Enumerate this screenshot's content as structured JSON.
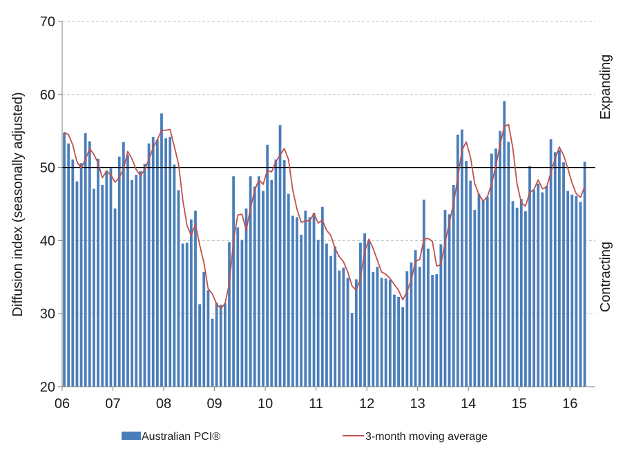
{
  "chart_data": {
    "type": "bar",
    "title": "",
    "xlabel": "",
    "ylabel": "Diffusion index (seasonally adjusted)",
    "ylim": [
      20,
      70
    ],
    "yticks": [
      20,
      30,
      40,
      50,
      60,
      70
    ],
    "xlim": [
      2006,
      2016.5
    ],
    "xticks": [
      {
        "value": 2006,
        "label": "06"
      },
      {
        "value": 2007,
        "label": "07"
      },
      {
        "value": 2008,
        "label": "08"
      },
      {
        "value": 2009,
        "label": "09"
      },
      {
        "value": 2010,
        "label": "10"
      },
      {
        "value": 2011,
        "label": "11"
      },
      {
        "value": 2012,
        "label": "12"
      },
      {
        "value": 2013,
        "label": "13"
      },
      {
        "value": 2014,
        "label": "14"
      },
      {
        "value": 2015,
        "label": "15"
      },
      {
        "value": 2016,
        "label": "16"
      }
    ],
    "grid": true,
    "reference_line": 50,
    "right_labels": {
      "upper": "Expanding",
      "lower": "Contracting"
    },
    "colors": {
      "bar": "#4a7ebb",
      "bar_light": "#8fb0dd",
      "line": "#c0504d",
      "grid": "#bfbfbf",
      "reference": "#000000"
    },
    "start": "2006-01",
    "frequency": "monthly",
    "series": [
      {
        "name": "Australian PCI®",
        "type": "bar",
        "values": [
          54.8,
          53.3,
          51.1,
          48.1,
          50.6,
          54.7,
          53.6,
          47.1,
          51.2,
          47.6,
          49.6,
          49.9,
          44.4,
          51.5,
          53.5,
          51.7,
          48.3,
          49.0,
          49.5,
          50.5,
          53.3,
          54.2,
          53.8,
          57.4,
          54.0,
          54.2,
          50.4,
          46.9,
          39.6,
          39.7,
          42.9,
          44.1,
          31.3,
          35.7,
          33.2,
          29.3,
          31.5,
          31.2,
          31.4,
          39.8,
          48.8,
          41.8,
          40.1,
          44.4,
          48.8,
          47.4,
          48.8,
          46.8,
          53.1,
          48.3,
          51.1,
          55.8,
          51.0,
          46.4,
          43.4,
          43.2,
          40.8,
          44.1,
          43.2,
          43.8,
          40.1,
          44.6,
          39.6,
          37.9,
          39.2,
          35.9,
          36.3,
          34.9,
          30.1,
          34.7,
          39.7,
          41.0,
          39.9,
          35.7,
          36.4,
          34.9,
          34.8,
          34.6,
          32.6,
          32.3,
          30.9,
          35.8,
          37.0,
          38.7,
          36.4,
          45.6,
          38.9,
          35.3,
          35.4,
          39.5,
          44.2,
          43.6,
          47.6,
          54.5,
          55.2,
          50.9,
          48.2,
          44.2,
          46.4,
          45.5,
          46.0,
          51.9,
          52.6,
          55.0,
          59.1,
          53.5,
          45.4,
          44.5,
          45.7,
          44.0,
          50.2,
          46.9,
          47.8,
          46.6,
          47.5,
          53.9,
          52.1,
          52.4,
          50.7,
          46.8,
          46.3,
          46.1,
          45.3,
          50.8
        ]
      },
      {
        "name": "3-month moving average",
        "type": "line",
        "values": [
          54.8,
          54.5,
          53.1,
          50.8,
          49.9,
          51.1,
          52.6,
          51.8,
          50.6,
          48.6,
          49.5,
          49.0,
          48.0,
          48.6,
          49.8,
          52.2,
          51.2,
          49.7,
          48.9,
          49.7,
          51.1,
          52.7,
          53.8,
          55.1,
          55.1,
          55.2,
          52.9,
          50.5,
          45.6,
          42.1,
          40.7,
          42.2,
          39.4,
          37.0,
          33.4,
          32.7,
          31.3,
          30.7,
          31.4,
          34.1,
          40.0,
          43.5,
          43.6,
          41.4,
          44.4,
          46.9,
          48.3,
          47.7,
          49.6,
          49.4,
          50.8,
          51.7,
          52.6,
          51.1,
          46.9,
          44.3,
          42.5,
          42.7,
          42.7,
          43.7,
          42.4,
          42.8,
          41.4,
          40.7,
          38.9,
          37.8,
          37.1,
          35.7,
          33.8,
          33.2,
          34.8,
          38.5,
          40.2,
          38.9,
          37.3,
          35.7,
          35.4,
          34.8,
          34.0,
          33.2,
          31.9,
          33.0,
          34.6,
          37.2,
          37.4,
          40.2,
          40.3,
          39.9,
          36.5,
          36.7,
          39.7,
          42.4,
          45.1,
          48.6,
          52.4,
          53.5,
          51.4,
          47.8,
          46.3,
          45.4,
          46.0,
          47.8,
          50.2,
          53.2,
          55.6,
          55.9,
          52.7,
          47.8,
          45.2,
          44.7,
          46.6,
          47.0,
          48.3,
          47.1,
          47.3,
          49.3,
          51.2,
          52.8,
          51.7,
          49.9,
          47.9,
          46.4,
          45.9,
          47.4
        ]
      }
    ],
    "legend": {
      "position": "bottom"
    }
  }
}
